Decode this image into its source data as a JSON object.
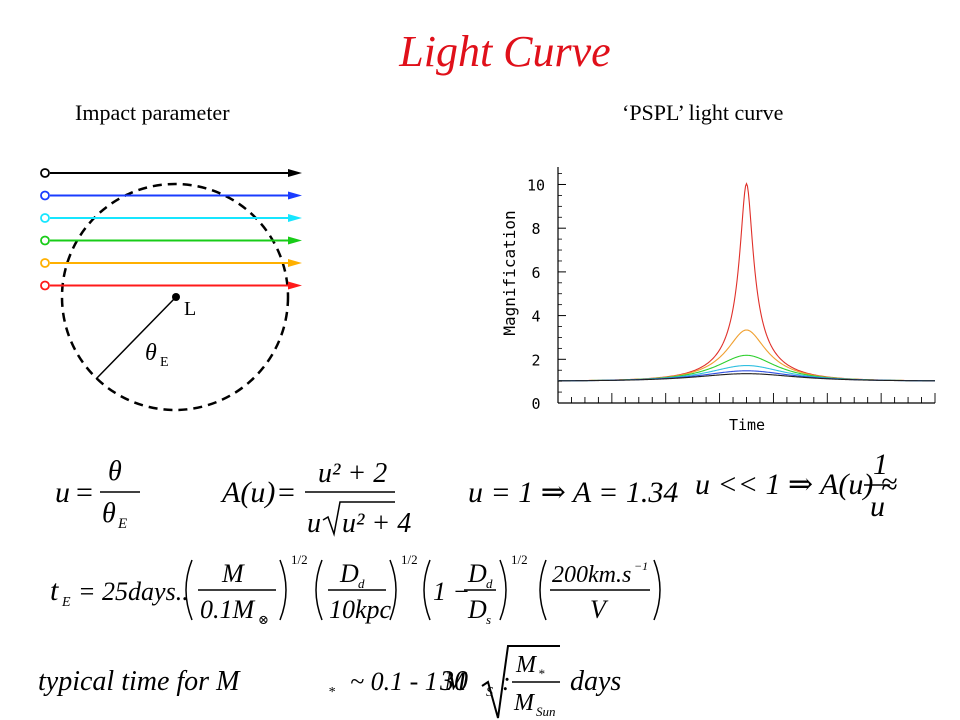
{
  "slide": {
    "title": "Light Curve",
    "left_heading": "Impact parameter",
    "right_heading": "‘PSPL’ light curve"
  },
  "diagram": {
    "lens_label": "L",
    "radius_symbol": "θ",
    "radius_subscript": "E",
    "track_colors": [
      "#000000",
      "#1a3cff",
      "#16e6ff",
      "#18cc18",
      "#ffb000",
      "#ff1a1a"
    ]
  },
  "chart_data": {
    "type": "line",
    "ylabel": "Magnification",
    "xlabel": "Time",
    "yticks": [
      0,
      2,
      4,
      6,
      8,
      10
    ],
    "ylim": [
      0,
      10.8
    ],
    "xlim": [
      -3,
      3
    ],
    "x_tick_labels": "none",
    "grid": false,
    "series": [
      {
        "color": "#e0302a",
        "u0": 0.1,
        "peak": 10.04
      },
      {
        "color": "#f0a030",
        "u0": 0.31,
        "peak": 3.39
      },
      {
        "color": "#30d030",
        "u0": 0.5,
        "peak": 2.18
      },
      {
        "color": "#30c0e0",
        "u0": 0.68,
        "peak": 1.74
      },
      {
        "color": "#3050e0",
        "u0": 0.85,
        "peak": 1.5
      },
      {
        "color": "#202020",
        "u0": 1.0,
        "peak": 1.34
      }
    ]
  },
  "equations": {
    "u_def": {
      "lhs": "u",
      "num": "θ",
      "den": "θ",
      "den_sub": "E"
    },
    "A_def": {
      "lhs": "A(u)",
      "num": "u² + 2",
      "den_u": "u",
      "den_root": "u² + 4"
    },
    "u1": "u = 1 ⇒ A = 1.34",
    "u_small": {
      "lhs": "u << 1 ⇒ A(u) ≈",
      "num": "1",
      "den": "u"
    },
    "tE": {
      "lhs": "t",
      "lhs_sub": "E",
      "eq": "= 25days..",
      "f1_num": "M",
      "f1_den": "0.1M",
      "f1_den_sub": "⊗",
      "f2_num": "D",
      "f2_num_sub": "d",
      "f2_den": "10kpc",
      "f3_pre": "1 −",
      "f3_num": "D",
      "f3_num_sub": "d",
      "f3_den": "D",
      "f3_den_sub": "s",
      "f4_num": "200km.s",
      "f4_num_sup": "−1",
      "f4_den": "V",
      "exp": "1/2"
    },
    "typical": {
      "text": "typical time for M",
      "text_sub": "*",
      "range": "~ 0.1 - 1 M",
      "range_sub": "S",
      "colon": ":",
      "coef": "30",
      "root_num": "M",
      "root_num_sub": "*",
      "root_den": "M",
      "root_den_sub": "Sun",
      "unit": "days"
    }
  }
}
